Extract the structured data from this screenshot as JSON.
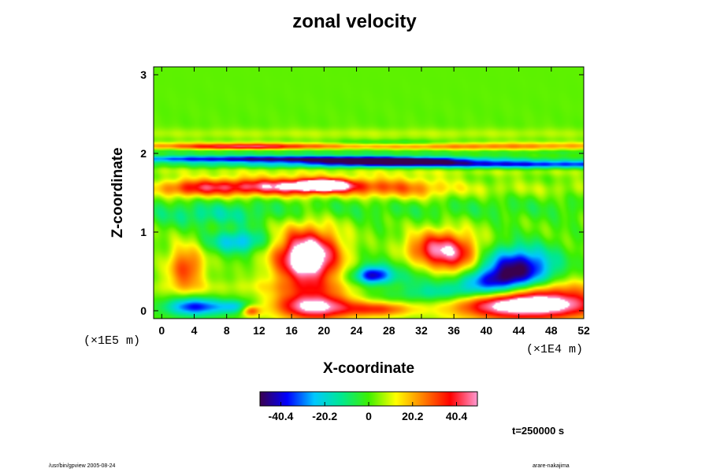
{
  "title": "zonal velocity",
  "footer_left": "/usr/bin/gpview 2005-08-24",
  "footer_right": "arare-nakajima",
  "chart_data": {
    "type": "heatmap",
    "title": "zonal velocity",
    "xlabel": "X-coordinate",
    "ylabel": "Z-coordinate",
    "x_scale_label": "(×1E4 m)",
    "z_scale_label": "(×1E5 m)",
    "xlim": [
      -1,
      52
    ],
    "ylim": [
      -0.1,
      3.1
    ],
    "x_ticks": [
      0,
      4,
      8,
      12,
      16,
      20,
      24,
      28,
      32,
      36,
      40,
      44,
      48,
      52
    ],
    "y_ticks": [
      0,
      1,
      2,
      3
    ],
    "colorbar": {
      "min": -50,
      "max": 50,
      "tick_values": [
        -40.4,
        -20.2,
        0,
        20.2,
        40.4
      ],
      "tick_labels": [
        "-40.4",
        "-20.2",
        "0",
        "20.2",
        "40.4"
      ],
      "colormap": [
        "#3a004e",
        "#0000ff",
        "#00c8ff",
        "#00e890",
        "#3ef000",
        "#ffff00",
        "#ff8000",
        "#ff0000",
        "#ff9ad2"
      ]
    },
    "background_value": 2,
    "features": [
      {
        "x": 26,
        "z": 0.3,
        "sx": 30,
        "sz": 0.07,
        "v": 7
      },
      {
        "x": 28,
        "z": 1.3,
        "sx": 30,
        "sz": 0.1,
        "v": -6
      },
      {
        "x": 26,
        "z": 1.55,
        "sx": 40,
        "sz": 0.07,
        "v": 6
      },
      {
        "x": 15,
        "z": 1.58,
        "sx": 7.5,
        "sz": 0.08,
        "v": 42
      },
      {
        "x": 20,
        "z": 1.6,
        "sx": 2.2,
        "sz": 0.05,
        "v": 48
      },
      {
        "x": 30,
        "z": 1.55,
        "sx": 4,
        "sz": 0.12,
        "v": 14
      },
      {
        "x": 4,
        "z": 1.55,
        "sx": 3,
        "sz": 0.08,
        "v": 18
      },
      {
        "x": 24,
        "z": 1.78,
        "sx": 40,
        "sz": 0.05,
        "v": 6
      },
      {
        "x": 14,
        "z": 1.93,
        "sx": 16,
        "sz": 0.028,
        "v": -46
      },
      {
        "x": 40,
        "z": 1.86,
        "sx": 22,
        "sz": 0.035,
        "v": -42
      },
      {
        "x": 28,
        "z": 1.9,
        "sx": 6,
        "sz": 0.03,
        "v": -40
      },
      {
        "x": 26,
        "z": 2.02,
        "sx": 40,
        "sz": 0.025,
        "v": -8
      },
      {
        "x": 26,
        "z": 2.1,
        "sx": 40,
        "sz": 0.03,
        "v": 20
      },
      {
        "x": 10,
        "z": 2.08,
        "sx": 6,
        "sz": 0.025,
        "v": 26
      },
      {
        "x": 28,
        "z": 2.13,
        "sx": 6,
        "sz": 0.025,
        "v": -14
      },
      {
        "x": 40,
        "z": 2.06,
        "sx": 10,
        "sz": 0.03,
        "v": 10
      },
      {
        "x": 26,
        "z": 2.25,
        "sx": 40,
        "sz": 0.05,
        "v": 6
      },
      {
        "x": 3,
        "z": 0.55,
        "sx": 1.6,
        "sz": 0.2,
        "v": 30
      },
      {
        "x": 18,
        "z": 0.7,
        "sx": 2.6,
        "sz": 0.22,
        "v": 46
      },
      {
        "x": 18,
        "z": 0.55,
        "sx": 3.2,
        "sz": 0.35,
        "v": 22
      },
      {
        "x": 9.5,
        "z": 0.88,
        "sx": 2.5,
        "sz": 0.1,
        "v": -28
      },
      {
        "x": 33,
        "z": 0.78,
        "sx": 2.5,
        "sz": 0.15,
        "v": 28
      },
      {
        "x": 36,
        "z": 0.7,
        "sx": 2.5,
        "sz": 0.2,
        "v": 36
      },
      {
        "x": 44,
        "z": 0.55,
        "sx": 3.2,
        "sz": 0.18,
        "v": -48
      },
      {
        "x": 41,
        "z": 0.35,
        "sx": 3,
        "sz": 0.12,
        "v": -34
      },
      {
        "x": 36,
        "z": 0.25,
        "sx": 4,
        "sz": 0.1,
        "v": -24
      },
      {
        "x": 45,
        "z": 0.08,
        "sx": 6,
        "sz": 0.12,
        "v": 48
      },
      {
        "x": 45,
        "z": 0.12,
        "sx": 8,
        "sz": 0.22,
        "v": 20
      },
      {
        "x": 19,
        "z": 0.05,
        "sx": 3.5,
        "sz": 0.12,
        "v": 46
      },
      {
        "x": 26,
        "z": 0.45,
        "sx": 1.5,
        "sz": 0.08,
        "v": -40
      },
      {
        "x": 27,
        "z": 0.02,
        "sx": 3,
        "sz": 0.07,
        "v": 30
      },
      {
        "x": 4,
        "z": 0.05,
        "sx": 2.4,
        "sz": 0.08,
        "v": -40
      },
      {
        "x": 9,
        "z": 0.05,
        "sx": 1.6,
        "sz": 0.06,
        "v": -22
      },
      {
        "x": 11,
        "z": 0.0,
        "sx": 0.8,
        "sz": 0.05,
        "v": 30
      },
      {
        "x": 31,
        "z": 0.35,
        "sx": 6,
        "sz": 0.25,
        "v": -12
      },
      {
        "x": 6,
        "z": 1.2,
        "sx": 5,
        "sz": 0.1,
        "v": -12
      }
    ]
  },
  "info": {
    "time_label": "t=250000 s"
  }
}
